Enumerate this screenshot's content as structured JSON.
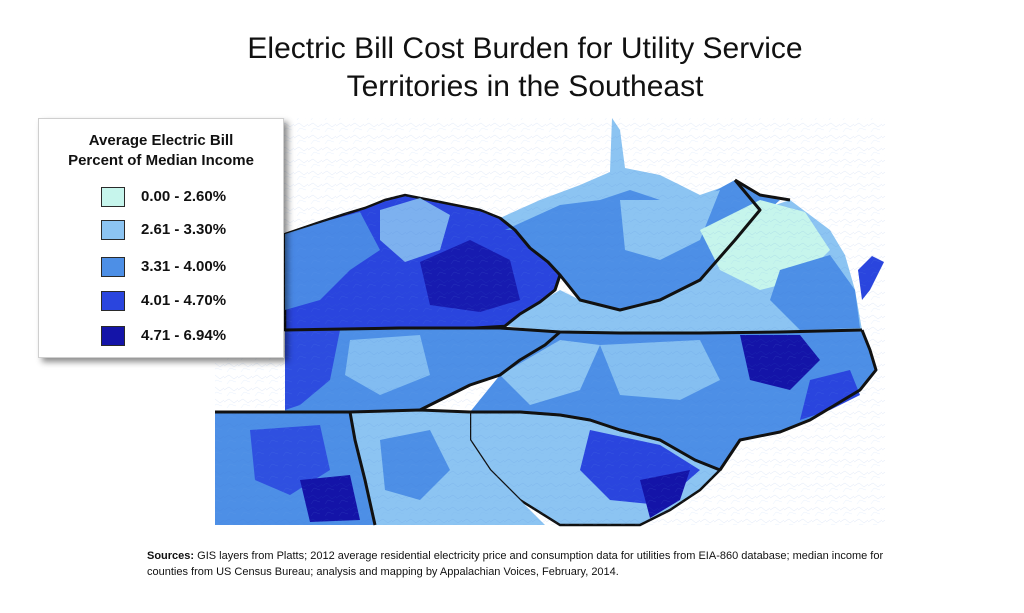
{
  "title": {
    "line1": "Electric Bill Cost Burden for Utility Service",
    "line2": "Territories in the Southeast"
  },
  "legend": {
    "title_line1": "Average Electric Bill",
    "title_line2": "Percent of Median Income",
    "items": [
      {
        "label": "0.00 - 2.60%",
        "color": "#c6f5ec"
      },
      {
        "label": "2.61 - 3.30%",
        "color": "#8cc4f2"
      },
      {
        "label": "3.31 - 4.00%",
        "color": "#4d8fe6"
      },
      {
        "label": "4.01 - 4.70%",
        "color": "#2a45de"
      },
      {
        "label": "4.71 - 6.94%",
        "color": "#1414a8"
      }
    ]
  },
  "sources": {
    "label": "Sources:",
    "text": " GIS layers from Platts; 2012 average residential electricity price and consumption data for utilities from EIA-860 database; median income for counties from US Census Bureau; analysis and mapping by Appalachian Voices, February, 2014."
  },
  "colors": {
    "border": "#111111",
    "background": "#ffffff"
  }
}
